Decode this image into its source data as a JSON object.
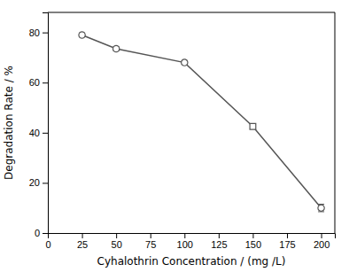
{
  "chart_data": {
    "type": "line",
    "xlabel": "Cyhalothrin Concentration / (mg /L)",
    "ylabel": "Degradation Rate / %",
    "x": [
      25,
      50,
      100,
      150,
      200
    ],
    "values": [
      79.0,
      73.5,
      68.0,
      42.5,
      10.0
    ],
    "errors": [
      0.8,
      0.8,
      0.8,
      0.8,
      1.5
    ],
    "marker": [
      "circle",
      "circle",
      "circle",
      "square",
      "circle"
    ],
    "color": "#555555",
    "xlim": [
      0,
      210
    ],
    "ylim": [
      0,
      88
    ],
    "xticks": [
      0,
      25,
      50,
      75,
      100,
      125,
      150,
      175,
      200
    ],
    "yticks": [
      0,
      20,
      40,
      60,
      80
    ],
    "grid": false
  }
}
